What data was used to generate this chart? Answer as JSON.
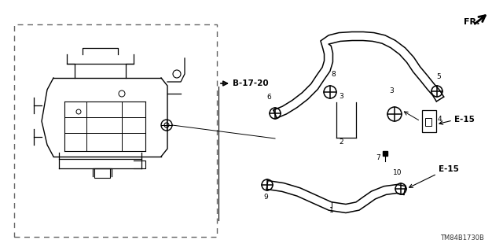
{
  "bg_color": "#ffffff",
  "fig_width": 6.4,
  "fig_height": 3.19,
  "dpi": 100,
  "watermark": "TM84B1730B",
  "fr_label": "FR.",
  "b1720_label": "B-17-20",
  "line_color": "#000000",
  "text_color": "#000000",
  "font_size_small": 6.5,
  "font_size_ref": 7.5,
  "font_size_watermark": 6,
  "font_size_fr": 8,
  "font_size_b17": 7.5
}
